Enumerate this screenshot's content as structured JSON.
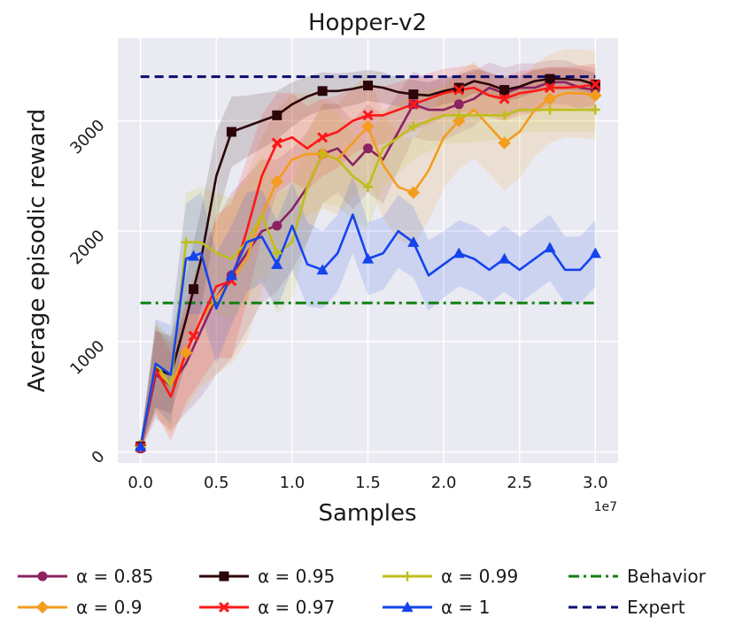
{
  "chart_data": {
    "type": "line",
    "title": "Hopper-v2",
    "xlabel": "Samples",
    "ylabel": "Average episodic reward",
    "x_offset_label": "1e7",
    "xlim": [
      -0.15,
      3.15
    ],
    "ylim": [
      -100,
      3750
    ],
    "x_ticks": [
      0.0,
      0.5,
      1.0,
      1.5,
      2.0,
      2.5,
      3.0
    ],
    "x_tick_labels": [
      "0.0",
      "0.5",
      "1.0",
      "1.5",
      "2.0",
      "2.5",
      "3.0"
    ],
    "y_ticks": [
      0,
      1000,
      2000,
      3000
    ],
    "y_tick_labels": [
      "0",
      "1000",
      "2000",
      "3000"
    ],
    "grid": true,
    "legend_position": "bottom",
    "legend_columns": 4,
    "x": [
      0.0,
      0.1,
      0.2,
      0.3,
      0.4,
      0.5,
      0.6,
      0.7,
      0.8,
      0.9,
      1.0,
      1.1,
      1.2,
      1.3,
      1.4,
      1.5,
      1.6,
      1.7,
      1.8,
      1.9,
      2.0,
      2.1,
      2.2,
      2.3,
      2.4,
      2.5,
      2.6,
      2.7,
      2.8,
      2.9,
      3.0
    ],
    "series": [
      {
        "name": "α = 0.85",
        "color": "#8b2262",
        "marker": "circle",
        "marker_x": [
          0.0,
          0.6,
          0.9,
          1.2,
          1.5,
          1.8,
          2.1,
          2.4,
          2.7,
          3.0
        ],
        "values": [
          30,
          700,
          600,
          800,
          1100,
          1400,
          1600,
          1800,
          2000,
          2050,
          2200,
          2400,
          2700,
          2750,
          2600,
          2750,
          2650,
          2900,
          3150,
          3100,
          3100,
          3150,
          3200,
          3300,
          3250,
          3300,
          3300,
          3350,
          3350,
          3300,
          3280
        ],
        "band": [
          30,
          400,
          400,
          450,
          600,
          700,
          750,
          700,
          650,
          600,
          550,
          500,
          450,
          400,
          400,
          400,
          400,
          350,
          300,
          280,
          280,
          260,
          250,
          230,
          230,
          220,
          220,
          200,
          200,
          200,
          200
        ]
      },
      {
        "name": "α = 0.9",
        "color": "#f39c1e",
        "marker": "diamond",
        "marker_x": [
          0.0,
          0.3,
          0.9,
          1.2,
          1.5,
          1.8,
          2.1,
          2.4,
          2.7,
          3.0
        ],
        "values": [
          60,
          750,
          600,
          900,
          1200,
          1400,
          1550,
          1750,
          2150,
          2450,
          2650,
          2700,
          2700,
          2650,
          2800,
          2950,
          2600,
          2400,
          2350,
          2550,
          2850,
          3000,
          3100,
          2950,
          2800,
          2900,
          3100,
          3200,
          3250,
          3250,
          3230
        ],
        "band": [
          40,
          400,
          450,
          500,
          600,
          700,
          750,
          750,
          700,
          650,
          600,
          550,
          500,
          500,
          500,
          480,
          480,
          480,
          480,
          460,
          460,
          440,
          440,
          430,
          430,
          420,
          420,
          400,
          400,
          400,
          400
        ]
      },
      {
        "name": "α = 0.95",
        "color": "#2b0508",
        "marker": "square",
        "marker_x": [
          0.0,
          0.35,
          0.6,
          0.9,
          1.2,
          1.5,
          1.8,
          2.1,
          2.4,
          2.7,
          3.0
        ],
        "values": [
          50,
          750,
          700,
          1200,
          1750,
          2500,
          2900,
          2950,
          3000,
          3050,
          3150,
          3220,
          3270,
          3270,
          3290,
          3320,
          3300,
          3260,
          3240,
          3230,
          3270,
          3300,
          3360,
          3330,
          3280,
          3310,
          3360,
          3380,
          3380,
          3370,
          3330
        ],
        "band": [
          40,
          350,
          350,
          400,
          450,
          400,
          320,
          280,
          250,
          220,
          200,
          180,
          170,
          160,
          150,
          140,
          140,
          130,
          130,
          120,
          120,
          120,
          110,
          110,
          110,
          100,
          100,
          100,
          100,
          100,
          100
        ]
      },
      {
        "name": "α = 0.97",
        "color": "#ff1717",
        "marker": "x",
        "marker_x": [
          0.0,
          0.35,
          0.6,
          0.9,
          1.2,
          1.5,
          1.8,
          2.1,
          2.4,
          2.7,
          3.0
        ],
        "values": [
          40,
          750,
          500,
          900,
          1200,
          1500,
          1550,
          2000,
          2500,
          2800,
          2850,
          2750,
          2850,
          2900,
          3000,
          3050,
          3050,
          3100,
          3150,
          3200,
          3250,
          3280,
          3300,
          3230,
          3200,
          3250,
          3270,
          3300,
          3300,
          3310,
          3330
        ],
        "band": [
          40,
          400,
          400,
          450,
          550,
          650,
          700,
          650,
          550,
          450,
          400,
          380,
          350,
          330,
          300,
          280,
          260,
          250,
          240,
          230,
          220,
          210,
          210,
          200,
          200,
          200,
          200,
          190,
          190,
          190,
          190
        ]
      },
      {
        "name": "α = 0.99",
        "color": "#bdbf19",
        "marker": "plus",
        "marker_x": [
          0.0,
          0.3,
          0.9,
          1.2,
          1.5,
          1.8,
          2.1,
          2.4,
          2.7,
          3.0
        ],
        "values": [
          45,
          800,
          600,
          1900,
          1900,
          1800,
          1750,
          1900,
          2150,
          1800,
          1900,
          2400,
          2700,
          2650,
          2500,
          2400,
          2750,
          2850,
          2950,
          3000,
          3050,
          3050,
          3050,
          3050,
          3050,
          3100,
          3100,
          3100,
          3100,
          3100,
          3100
        ],
        "band": [
          40,
          400,
          400,
          450,
          500,
          550,
          550,
          550,
          550,
          550,
          500,
          500,
          450,
          420,
          400,
          380,
          350,
          320,
          300,
          280,
          260,
          250,
          240,
          230,
          220,
          210,
          200,
          200,
          200,
          200,
          200
        ]
      },
      {
        "name": "α = 1",
        "color": "#1444ee",
        "marker": "triangle",
        "marker_x": [
          0.0,
          0.35,
          0.6,
          0.9,
          1.2,
          1.5,
          1.8,
          2.1,
          2.4,
          2.7,
          3.0
        ],
        "values": [
          50,
          800,
          700,
          1750,
          1800,
          1300,
          1600,
          1900,
          1950,
          1700,
          2050,
          1700,
          1650,
          1800,
          2150,
          1750,
          1800,
          2000,
          1900,
          1600,
          1700,
          1800,
          1750,
          1650,
          1750,
          1650,
          1750,
          1850,
          1650,
          1650,
          1800
        ],
        "band": [
          40,
          400,
          450,
          500,
          550,
          500,
          450,
          450,
          420,
          400,
          400,
          380,
          350,
          350,
          350,
          330,
          330,
          330,
          320,
          320,
          300,
          300,
          300,
          300,
          300,
          300,
          300,
          300,
          300,
          300,
          300
        ]
      },
      {
        "name": "Behavior",
        "color": "#108010",
        "style": "dashdot",
        "constant": 1350
      },
      {
        "name": "Expert",
        "color": "#0a0a6e",
        "style": "dashed",
        "constant": 3400
      }
    ]
  }
}
